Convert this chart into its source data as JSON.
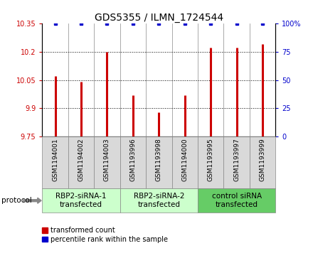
{
  "title": "GDS5355 / ILMN_1724544",
  "samples": [
    "GSM1194001",
    "GSM1194002",
    "GSM1194003",
    "GSM1193996",
    "GSM1193998",
    "GSM1194000",
    "GSM1193995",
    "GSM1193997",
    "GSM1193999"
  ],
  "red_values": [
    10.07,
    10.04,
    10.2,
    9.97,
    9.88,
    9.97,
    10.22,
    10.22,
    10.24
  ],
  "blue_values_pct": [
    100,
    100,
    100,
    100,
    100,
    100,
    100,
    100,
    100
  ],
  "ylim_left": [
    9.75,
    10.35
  ],
  "ylim_right": [
    0,
    100
  ],
  "yticks_left": [
    9.75,
    9.9,
    10.05,
    10.2,
    10.35
  ],
  "yticks_right": [
    0,
    25,
    50,
    75,
    100
  ],
  "groups": [
    {
      "label": "RBP2-siRNA-1\ntransfected",
      "start": 0,
      "end": 3,
      "color": "#ccffcc"
    },
    {
      "label": "RBP2-siRNA-2\ntransfected",
      "start": 3,
      "end": 6,
      "color": "#ccffcc"
    },
    {
      "label": "control siRNA\ntransfected",
      "start": 6,
      "end": 9,
      "color": "#66cc66"
    }
  ],
  "red_color": "#cc0000",
  "blue_color": "#0000cc",
  "protocol_label": "protocol",
  "legend_red": "transformed count",
  "legend_blue": "percentile rank within the sample",
  "title_fontsize": 10,
  "tick_fontsize": 7,
  "sample_fontsize": 6.5,
  "group_fontsize": 7.5,
  "legend_fontsize": 7,
  "bg_gray": "#d9d9d9",
  "bg_white": "#ffffff"
}
